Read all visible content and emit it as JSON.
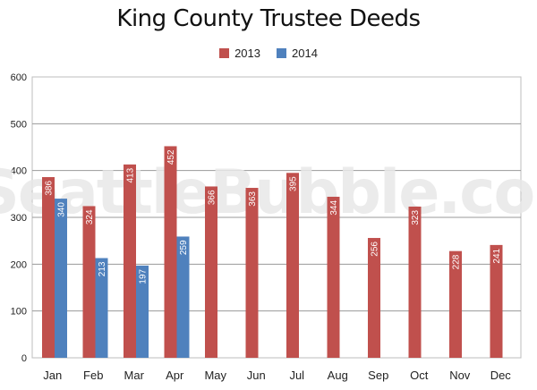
{
  "chart_data": {
    "type": "bar",
    "title": "King County Trustee Deeds",
    "watermark": "SeattleBubble.com",
    "categories": [
      "Jan",
      "Feb",
      "Mar",
      "Apr",
      "May",
      "Jun",
      "Jul",
      "Aug",
      "Sep",
      "Oct",
      "Nov",
      "Dec"
    ],
    "series": [
      {
        "name": "2013",
        "color": "#c0504d",
        "values": [
          386,
          324,
          413,
          452,
          366,
          363,
          395,
          344,
          256,
          323,
          228,
          241
        ]
      },
      {
        "name": "2014",
        "color": "#4f81bd",
        "values": [
          340,
          213,
          197,
          259,
          null,
          null,
          null,
          null,
          null,
          null,
          null,
          null
        ]
      }
    ],
    "xlabel": "",
    "ylabel": "",
    "ylim": [
      0,
      600
    ],
    "yticks": [
      0,
      100,
      200,
      300,
      400,
      500,
      600
    ],
    "grid": true,
    "legend_position": "top"
  }
}
